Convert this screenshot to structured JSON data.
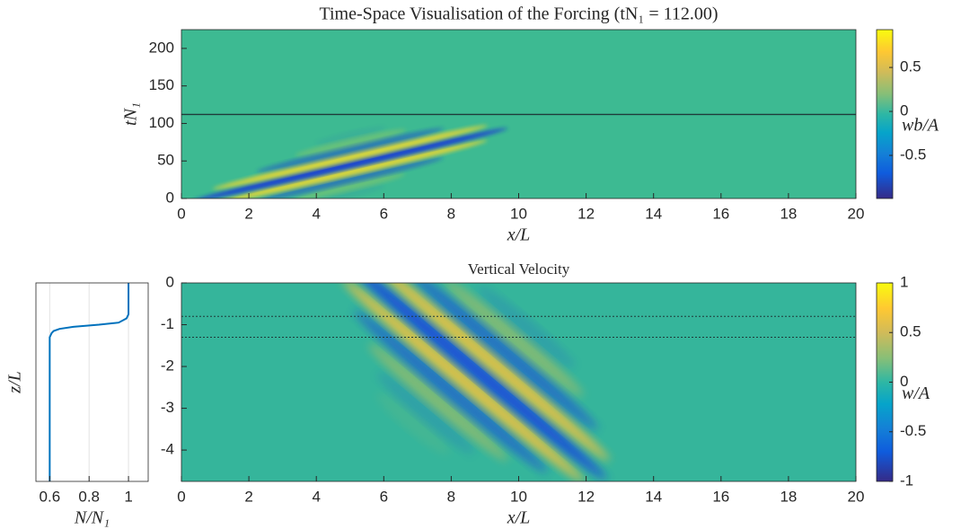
{
  "chart_data": [
    {
      "type": "heatmap",
      "title": "Time-Space Visualisation of the Forcing (tN₁ = 112.00)",
      "xlabel": "x/L",
      "ylabel": "tN₁",
      "xlim": [
        0,
        20
      ],
      "xticks": [
        0,
        2,
        4,
        6,
        8,
        10,
        12,
        14,
        16,
        18,
        20
      ],
      "ylim": [
        0,
        225
      ],
      "yticks": [
        0,
        50,
        100,
        150,
        200
      ],
      "marker": 112,
      "marker_color": "#1f3b3a",
      "colorbar_label": "wb/A",
      "clim": [
        -0.99,
        0.93
      ],
      "cticks": [
        -0.5,
        0,
        0.5
      ]
    },
    {
      "type": "heatmap",
      "title": "Vertical Velocity",
      "xlabel": "x/L",
      "xlim": [
        0,
        20
      ],
      "xticks": [
        0,
        2,
        4,
        6,
        8,
        10,
        12,
        14,
        16,
        18,
        20
      ],
      "ylim": [
        -4.75,
        0
      ],
      "yticks": [
        -4,
        -3,
        -2,
        -1,
        0
      ],
      "layer_lines": [
        -0.8,
        -1.3
      ],
      "colorbar_label": "w/A",
      "clim": [
        -1,
        1
      ],
      "cticks": [
        -1,
        -0.5,
        0,
        0.5,
        1
      ]
    },
    {
      "type": "line",
      "xlabel": "N/N₁",
      "ylabel": "z/L",
      "xlim": [
        0.53,
        1.1
      ],
      "xticks": [
        0.6,
        0.8,
        1
      ],
      "ylim": [
        -4.75,
        0
      ],
      "grid": true,
      "y": [
        0,
        -0.75,
        -0.85,
        -0.95,
        -1.0,
        -1.05,
        -1.1,
        -1.15,
        -1.2,
        -1.3,
        -1.5,
        -4.75
      ],
      "series": [
        {
          "color": "#0072bd",
          "values": [
            1,
            1,
            0.99,
            0.95,
            0.85,
            0.72,
            0.65,
            0.62,
            0.61,
            0.6,
            0.6,
            0.6
          ]
        }
      ]
    }
  ]
}
